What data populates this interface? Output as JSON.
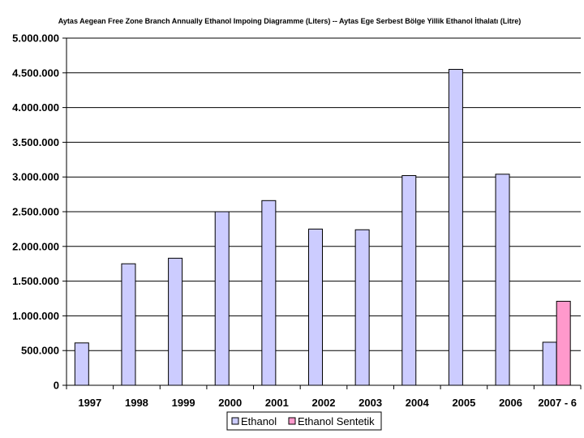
{
  "chart_data": {
    "type": "bar",
    "title": "Aytas Aegean Free Zone Branch Annually Ethanol Impoing Diagramme (Liters) -- Aytas Ege Serbest Bölge Yillik Ethanol İthalatı (Litre)",
    "xlabel": "",
    "ylabel": "",
    "categories": [
      "1997",
      "1998",
      "1999",
      "2000",
      "2001",
      "2002",
      "2003",
      "2004",
      "2005",
      "2006",
      "2007 - 6"
    ],
    "series": [
      {
        "name": "Ethanol",
        "color": "#ccccff",
        "values": [
          610000,
          1750000,
          1830000,
          2500000,
          2660000,
          2250000,
          2240000,
          3020000,
          4550000,
          3040000,
          620000
        ]
      },
      {
        "name": "Ethanol Sentetik",
        "color": "#ff99cc",
        "values": [
          null,
          null,
          null,
          null,
          null,
          null,
          null,
          null,
          null,
          null,
          1210000
        ]
      }
    ],
    "yticks": [
      "0",
      "500.000",
      "1.000.000",
      "1.500.000",
      "2.000.000",
      "2.500.000",
      "3.000.000",
      "3.500.000",
      "4.000.000",
      "4.500.000",
      "5.000.000"
    ],
    "ylim": [
      0,
      5000000
    ],
    "ytick_step": 500000,
    "grid": true,
    "legend_position": "bottom-center"
  }
}
